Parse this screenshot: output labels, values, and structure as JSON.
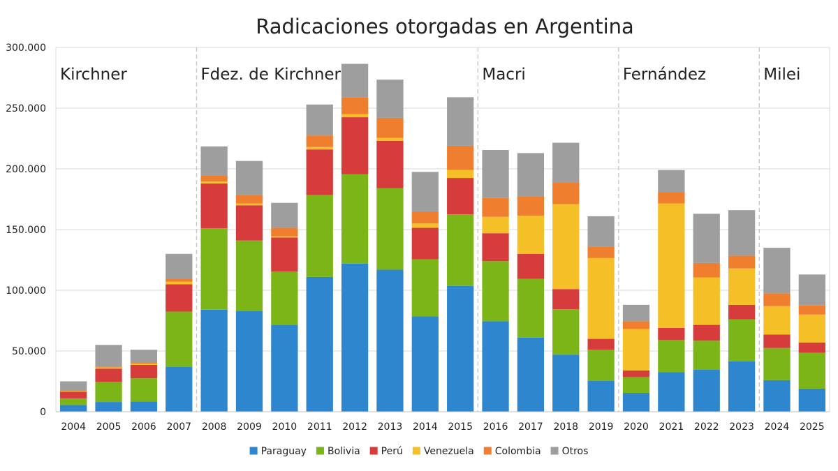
{
  "chart_data": {
    "type": "bar",
    "stacked": true,
    "title": "Radicaciones otorgadas en Argentina",
    "xlabel": "",
    "ylabel": "",
    "ylim": [
      0,
      300000
    ],
    "yticks": [
      0,
      50000,
      100000,
      150000,
      200000,
      250000,
      300000
    ],
    "ytick_labels": [
      "0",
      "50.000",
      "100.000",
      "150.000",
      "200.000",
      "250.000",
      "300.000"
    ],
    "grid": true,
    "legend_position": "bottom",
    "categories": [
      "2004",
      "2005",
      "2006",
      "2007",
      "2008",
      "2009",
      "2010",
      "2011",
      "2012",
      "2013",
      "2014",
      "2015",
      "2016",
      "2017",
      "2018",
      "2019",
      "2020",
      "2021",
      "2022",
      "2023",
      "2024",
      "2025"
    ],
    "series": [
      {
        "name": "Paraguay",
        "color": "#2E86CE",
        "values": [
          5500,
          8000,
          8500,
          37000,
          84000,
          83000,
          71500,
          111000,
          122000,
          117000,
          78500,
          103500,
          74500,
          61000,
          47000,
          25500,
          15500,
          32500,
          34500,
          41500,
          26000,
          19000
        ]
      },
      {
        "name": "Bolivia",
        "color": "#7CB518",
        "values": [
          5500,
          16500,
          19000,
          45500,
          67000,
          58000,
          44000,
          67500,
          73500,
          67000,
          47000,
          59000,
          49500,
          48500,
          37500,
          25500,
          13000,
          26500,
          24000,
          34500,
          26500,
          29500
        ]
      },
      {
        "name": "Perú",
        "color": "#D63C3C",
        "values": [
          5500,
          11000,
          11000,
          22500,
          37000,
          29000,
          28000,
          37500,
          47000,
          39000,
          26000,
          30000,
          23000,
          20500,
          16500,
          9000,
          5500,
          10000,
          13000,
          12000,
          11000,
          8500
        ]
      },
      {
        "name": "Venezuela",
        "color": "#F5C027",
        "values": [
          500,
          1000,
          1000,
          2000,
          1500,
          1500,
          1000,
          2000,
          2500,
          2500,
          3500,
          6500,
          13500,
          31500,
          70000,
          66500,
          34000,
          102500,
          39000,
          30000,
          23500,
          23000
        ]
      },
      {
        "name": "Colombia",
        "color": "#EF7F2F",
        "values": [
          500,
          500,
          1000,
          2500,
          5000,
          7000,
          7000,
          9500,
          14000,
          16500,
          10000,
          20000,
          15500,
          16000,
          18000,
          9500,
          6500,
          9500,
          12000,
          10500,
          10500,
          7500
        ]
      },
      {
        "name": "Otros",
        "color": "#9E9E9E",
        "values": [
          7500,
          18000,
          10500,
          20500,
          24000,
          28000,
          20500,
          25500,
          27500,
          31500,
          32500,
          40000,
          39500,
          35500,
          32500,
          25000,
          13500,
          18000,
          40500,
          37500,
          37500,
          25500
        ]
      }
    ],
    "periods": [
      {
        "name": "Kirchner",
        "start": "2004",
        "end": "2007"
      },
      {
        "name": "Fdez. de Kirchner",
        "start": "2008",
        "end": "2015"
      },
      {
        "name": "Macri",
        "start": "2016",
        "end": "2019"
      },
      {
        "name": "Fernández",
        "start": "2020",
        "end": "2023"
      },
      {
        "name": "Milei",
        "start": "2024",
        "end": "2025"
      }
    ]
  }
}
